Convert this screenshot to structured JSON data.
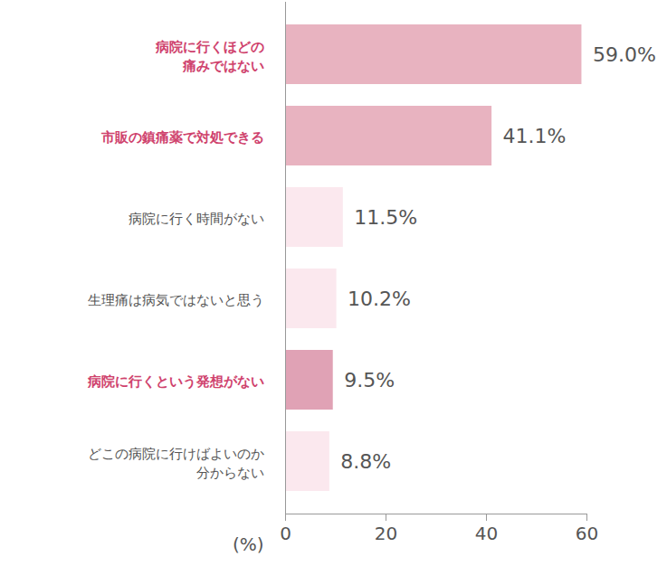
{
  "chart_data": {
    "type": "bar",
    "orientation": "horizontal",
    "categories": [
      "病院に行くほどの\n痛みではない",
      "市販の鎮痛薬で対処できる",
      "病院に行く時間がない",
      "生理痛は病気ではないと思う",
      "病院に行くという発想がない",
      "どこの病院に行けばよいのか\n分からない"
    ],
    "values": [
      59.0,
      41.1,
      11.5,
      10.2,
      9.5,
      8.8
    ],
    "value_labels": [
      "59.0%",
      "41.1%",
      "11.5%",
      "10.2%",
      "9.5%",
      "8.8%"
    ],
    "colors": [
      "#e8b3c0",
      "#e8b3c0",
      "#fbe8ee",
      "#fbe8ee",
      "#e0a2b5",
      "#fbe8ee"
    ],
    "x_label": "(%)",
    "xlim": [
      0,
      60
    ],
    "xticks": [
      0,
      20,
      40,
      60
    ],
    "grid": false,
    "data_labels": true
  }
}
